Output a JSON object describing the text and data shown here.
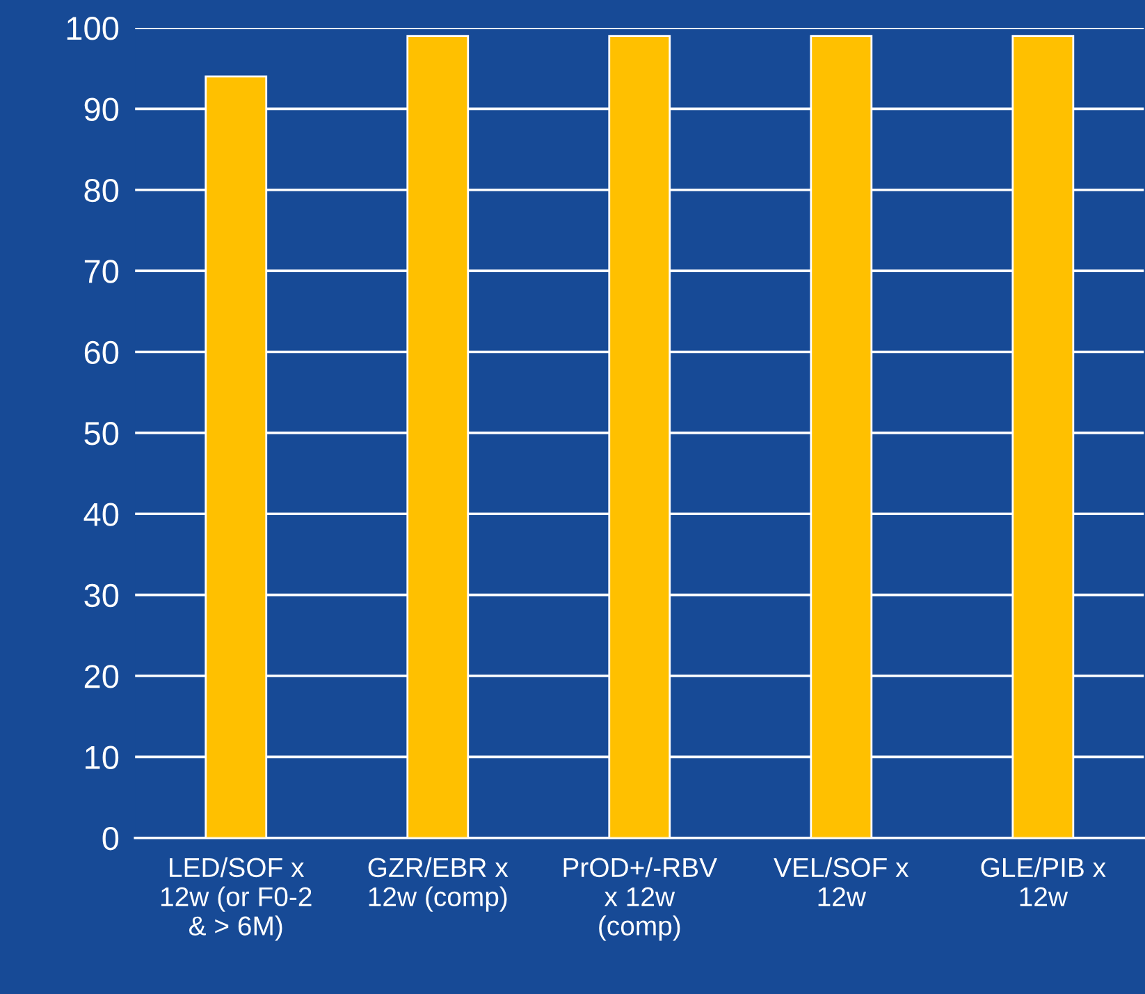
{
  "chart_data": {
    "type": "bar",
    "categories": [
      "LED/SOF x\n12w (or F0-2\n& > 6M)",
      "GZR/EBR x\n12w (comp)",
      "PrOD+/-RBV\nx 12w\n(comp)",
      "VEL/SOF x\n12w",
      "GLE/PIB x\n12w"
    ],
    "values": [
      94,
      99,
      99,
      99,
      99
    ],
    "color": "#ffc000",
    "ylim": [
      0,
      100
    ],
    "yticks": [
      0,
      10,
      20,
      30,
      40,
      50,
      60,
      70,
      80,
      90,
      100
    ],
    "grid": "y",
    "legend": false
  }
}
